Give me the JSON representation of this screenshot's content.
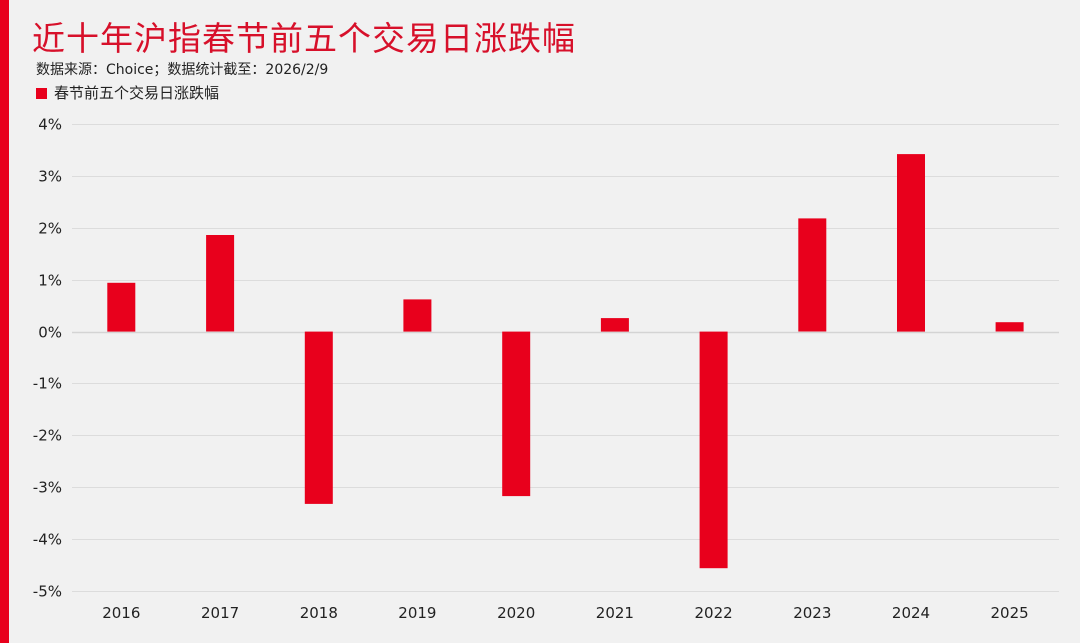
{
  "chart_data": {
    "type": "bar",
    "title": "近十年沪指春节前五个交易日涨跌幅",
    "subtitle": "数据来源：Choice；数据统计截至：2026/2/9",
    "xlabel": "",
    "ylabel": "",
    "categories": [
      "2016",
      "2017",
      "2018",
      "2019",
      "2020",
      "2021",
      "2022",
      "2023",
      "2024",
      "2025"
    ],
    "series": [
      {
        "name": "春节前五个交易日涨跌幅",
        "color": "#e8001c",
        "values": [
          0.94,
          1.86,
          -3.32,
          0.62,
          -3.17,
          0.26,
          -4.56,
          2.18,
          3.42,
          0.18
        ]
      }
    ],
    "ylim": [
      -5,
      4
    ],
    "yticks": [
      4,
      3,
      2,
      1,
      0,
      -1,
      -2,
      -3,
      -4,
      -5
    ],
    "ytick_labels": [
      "4%",
      "3%",
      "2%",
      "1%",
      "0%",
      "-1%",
      "-2%",
      "-3%",
      "-4%",
      "-5%"
    ],
    "grid": true,
    "legend_position": "top-left"
  },
  "colors": {
    "accent": "#e8001c",
    "title": "#d7102a",
    "background": "#f1f1f1",
    "grid": "#dcdcdc"
  }
}
